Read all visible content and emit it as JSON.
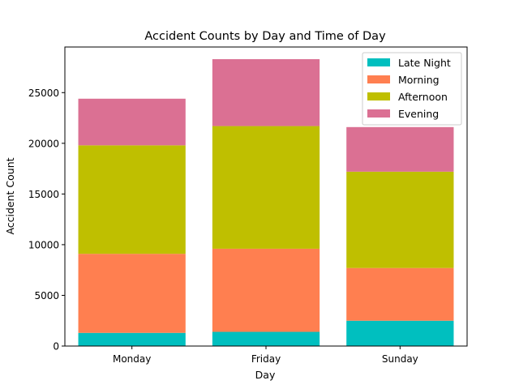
{
  "chart_data": {
    "type": "bar",
    "stacked": true,
    "title": "Accident Counts by Day and Time of Day",
    "xlabel": "Day",
    "ylabel": "Accident Count",
    "categories": [
      "Monday",
      "Friday",
      "Sunday"
    ],
    "series": [
      {
        "name": "Late Night",
        "color": "#00bfbf",
        "values": [
          1300,
          1400,
          2500
        ]
      },
      {
        "name": "Morning",
        "color": "#ff7f50",
        "values": [
          7800,
          8200,
          5200
        ]
      },
      {
        "name": "Afternoon",
        "color": "#bfbf00",
        "values": [
          10700,
          12100,
          9500
        ]
      },
      {
        "name": "Evening",
        "color": "#db7093",
        "values": [
          4600,
          6600,
          4400
        ]
      }
    ],
    "ylim": [
      0,
      29500
    ],
    "yticks": [
      0,
      5000,
      10000,
      15000,
      20000,
      25000
    ],
    "grid": false,
    "legend_position": "top-right"
  }
}
